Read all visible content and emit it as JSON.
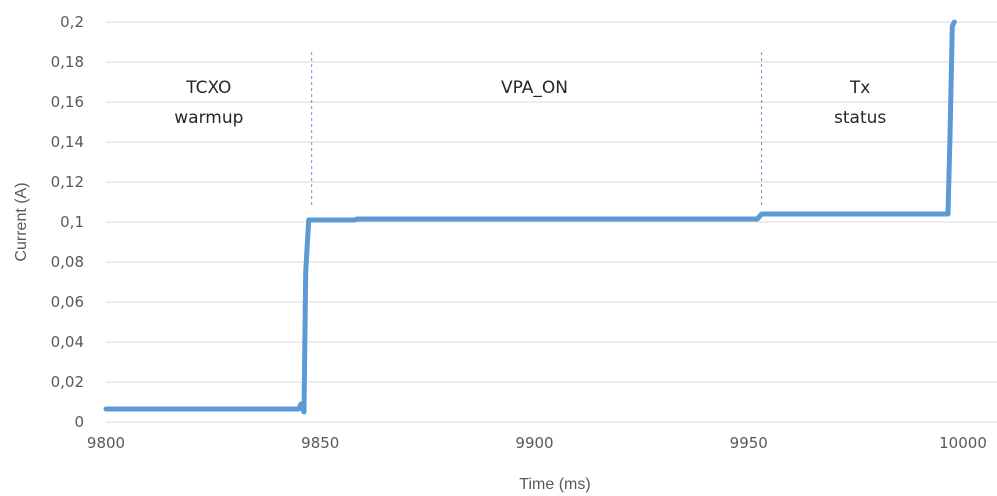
{
  "chart_data": {
    "type": "line",
    "title": "",
    "xlabel": "Time (ms)",
    "ylabel": "Current (A)",
    "xlim": [
      9800,
      10000
    ],
    "ylim": [
      0,
      0.2
    ],
    "x_ticks": [
      9800,
      9850,
      9900,
      9950,
      10000
    ],
    "x_tick_labels": [
      "9800",
      "9850",
      "9900",
      "9950",
      "10000"
    ],
    "y_ticks": [
      0,
      0.02,
      0.04,
      0.06,
      0.08,
      0.1,
      0.12,
      0.14,
      0.16,
      0.18,
      0.2
    ],
    "y_tick_labels": [
      "0",
      "0,02",
      "0,04",
      "0,06",
      "0,08",
      "0,1",
      "0,12",
      "0,14",
      "0,16",
      "0,18",
      "0,2"
    ],
    "grid": "horizontal",
    "legend": "none",
    "line_color": "#5B9BD5",
    "gridline_color": "#D9D9D9",
    "divider_color": "#5B9BD5",
    "series": [
      {
        "x": [
          9800,
          9845,
          9845.5,
          9846.2,
          9846.6,
          9847.3,
          9848,
          9858,
          9858.5,
          9952,
          9953,
          9996.5,
          9997,
          9997.5,
          9998
        ],
        "y": [
          0.0065,
          0.0065,
          0.009,
          0.005,
          0.075,
          0.101,
          0.101,
          0.101,
          0.1015,
          0.1015,
          0.104,
          0.104,
          0.145,
          0.198,
          0.2
        ]
      }
    ],
    "phase_dividers": [
      9848,
      9953
    ],
    "annotations": [
      {
        "lines": [
          "TCXO",
          "warmup"
        ],
        "x": 9824
      },
      {
        "lines": [
          "VPA_ON"
        ],
        "x": 9900
      },
      {
        "lines": [
          "Tx",
          "status"
        ],
        "x": 9976
      }
    ]
  }
}
